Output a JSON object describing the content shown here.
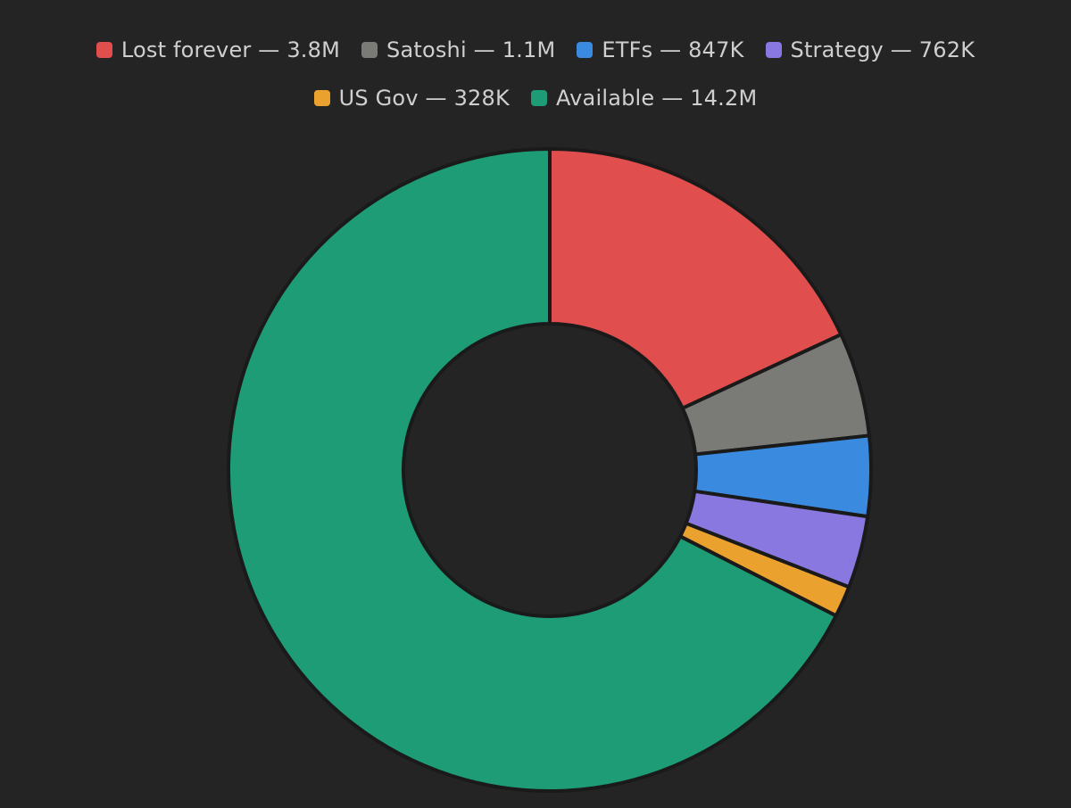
{
  "colors": {
    "background": "#242424",
    "slice_border": "#1a1a1a",
    "legend_text": "#cfcfcf"
  },
  "chart_data": {
    "type": "pie",
    "variant": "donut",
    "legend_position": "top-center",
    "categories": [
      "Lost forever",
      "Satoshi",
      "ETFs",
      "Strategy",
      "US Gov",
      "Available"
    ],
    "values": [
      3800000,
      1100000,
      847000,
      762000,
      328000,
      14200000
    ],
    "value_labels": [
      "3.8M",
      "1.1M",
      "847K",
      "762K",
      "328K",
      "14.2M"
    ],
    "legend_entries": [
      {
        "label": "Lost forever — 3.8M",
        "color": "#e04e4e"
      },
      {
        "label": "Satoshi — 1.1M",
        "color": "#7a7a76"
      },
      {
        "label": "ETFs — 847K",
        "color": "#3a8be0"
      },
      {
        "label": "Strategy — 762K",
        "color": "#8978e0"
      },
      {
        "label": "US Gov — 328K",
        "color": "#eba12e"
      },
      {
        "label": "Available — 14.2M",
        "color": "#1d9c76"
      }
    ]
  }
}
